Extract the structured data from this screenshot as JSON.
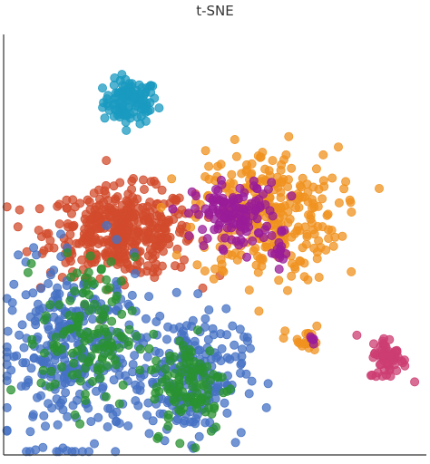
{
  "chart_data": {
    "type": "scatter",
    "title": "t-SNE",
    "xlabel": "",
    "ylabel": "",
    "xlim": [
      0,
      100
    ],
    "ylim": [
      0,
      100
    ],
    "grid": false,
    "series": [
      {
        "color": "#1a9ac0",
        "clusters": [
          {
            "cx": 30,
            "cy": 84,
            "sx": 3.2,
            "sy": 2.6,
            "n": 110
          }
        ]
      },
      {
        "color": "#d14b2c",
        "clusters": [
          {
            "cx": 28,
            "cy": 53,
            "sx": 8.5,
            "sy": 5.2,
            "n": 420
          }
        ]
      },
      {
        "color": "#f0921f",
        "clusters": [
          {
            "cx": 62,
            "cy": 57,
            "sx": 8.5,
            "sy": 8,
            "n": 300
          },
          {
            "cx": 71,
            "cy": 27,
            "sx": 2.2,
            "sy": 1.8,
            "n": 22
          }
        ]
      },
      {
        "color": "#9a1c98",
        "clusters": [
          {
            "cx": 55,
            "cy": 57,
            "sx": 5,
            "sy": 3.8,
            "n": 130
          },
          {
            "cx": 65,
            "cy": 48,
            "sx": 1.2,
            "sy": 1.6,
            "n": 12
          },
          {
            "cx": 73,
            "cy": 28,
            "sx": 1,
            "sy": 0.8,
            "n": 5
          }
        ]
      },
      {
        "color": "#4672c4",
        "clusters": [
          {
            "cx": 17,
            "cy": 24,
            "sx": 8.5,
            "sy": 10.5,
            "n": 330
          },
          {
            "cx": 44,
            "cy": 19,
            "sx": 6.5,
            "sy": 7.5,
            "n": 210
          }
        ]
      },
      {
        "color": "#2a9232",
        "clusters": [
          {
            "cx": 20,
            "cy": 29,
            "sx": 5.5,
            "sy": 9,
            "n": 130
          },
          {
            "cx": 44,
            "cy": 17,
            "sx": 4.5,
            "sy": 6,
            "n": 110
          }
        ]
      },
      {
        "color": "#cc3d72",
        "clusters": [
          {
            "cx": 91,
            "cy": 23,
            "sx": 2.2,
            "sy": 2.6,
            "n": 60
          }
        ]
      }
    ]
  }
}
